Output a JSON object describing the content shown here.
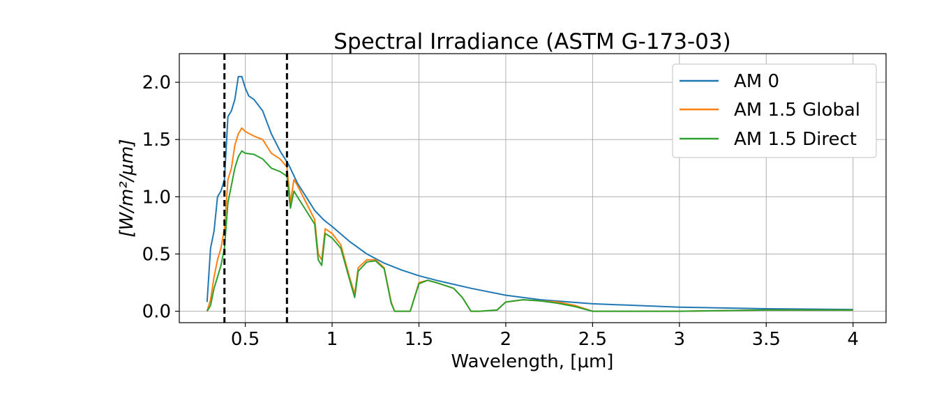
{
  "chart_data": {
    "type": "line",
    "title": "Spectral Irradiance (ASTM G-173-03)",
    "xlabel": "Wavelength, [μm]",
    "ylabel": "[W/m²/μm]",
    "xlim": [
      0.12,
      4.19
    ],
    "ylim": [
      -0.1,
      2.25
    ],
    "x_ticks": [
      0.5,
      1,
      1.5,
      2,
      2.5,
      3,
      3.5,
      4
    ],
    "x_tick_labels": [
      "0.5",
      "1",
      "1.5",
      "2",
      "2.5",
      "3",
      "3.5",
      "4"
    ],
    "y_ticks": [
      0.0,
      0.5,
      1.0,
      1.5,
      2.0
    ],
    "y_tick_labels": [
      "0.0",
      "0.5",
      "1.0",
      "1.5",
      "2.0"
    ],
    "grid": true,
    "legend_position": "top-right",
    "vlines": {
      "x": [
        0.38,
        0.74
      ],
      "style": "dashed",
      "color": "#000000"
    },
    "series": [
      {
        "name": "AM 0",
        "color": "#1f77b4",
        "x": [
          0.28,
          0.3,
          0.32,
          0.34,
          0.36,
          0.38,
          0.4,
          0.42,
          0.44,
          0.46,
          0.48,
          0.5,
          0.52,
          0.55,
          0.6,
          0.65,
          0.7,
          0.75,
          0.8,
          0.85,
          0.9,
          0.95,
          1.0,
          1.1,
          1.2,
          1.3,
          1.4,
          1.5,
          1.6,
          1.8,
          2.0,
          2.2,
          2.5,
          3.0,
          3.5,
          4.0
        ],
        "y": [
          0.08,
          0.55,
          0.7,
          1.0,
          1.05,
          1.15,
          1.7,
          1.75,
          1.85,
          2.05,
          2.05,
          1.95,
          1.88,
          1.85,
          1.75,
          1.55,
          1.4,
          1.28,
          1.12,
          1.0,
          0.88,
          0.8,
          0.74,
          0.61,
          0.5,
          0.42,
          0.36,
          0.31,
          0.27,
          0.2,
          0.14,
          0.1,
          0.065,
          0.036,
          0.022,
          0.015
        ]
      },
      {
        "name": "AM 1.5 Global",
        "color": "#ff7f0e",
        "x": [
          0.28,
          0.3,
          0.32,
          0.34,
          0.36,
          0.38,
          0.4,
          0.42,
          0.44,
          0.46,
          0.48,
          0.5,
          0.55,
          0.6,
          0.65,
          0.7,
          0.74,
          0.76,
          0.78,
          0.8,
          0.85,
          0.9,
          0.92,
          0.94,
          0.96,
          1.0,
          1.05,
          1.1,
          1.13,
          1.15,
          1.2,
          1.25,
          1.3,
          1.34,
          1.36,
          1.4,
          1.45,
          1.5,
          1.55,
          1.6,
          1.7,
          1.75,
          1.8,
          1.85,
          1.95,
          2.0,
          2.1,
          2.2,
          2.3,
          2.4,
          2.5,
          2.6,
          3.0,
          3.5,
          4.0
        ],
        "y": [
          0.0,
          0.1,
          0.3,
          0.45,
          0.55,
          0.72,
          1.15,
          1.25,
          1.45,
          1.55,
          1.6,
          1.57,
          1.53,
          1.5,
          1.38,
          1.33,
          1.26,
          0.95,
          1.15,
          1.1,
          0.95,
          0.8,
          0.5,
          0.45,
          0.72,
          0.68,
          0.58,
          0.3,
          0.15,
          0.38,
          0.45,
          0.45,
          0.38,
          0.08,
          0.0,
          0.0,
          0.0,
          0.25,
          0.27,
          0.25,
          0.2,
          0.12,
          0.0,
          0.0,
          0.01,
          0.08,
          0.1,
          0.09,
          0.08,
          0.05,
          0.0,
          0.0,
          0.0,
          0.01,
          0.01
        ]
      },
      {
        "name": "AM 1.5 Direct",
        "color": "#2ca02c",
        "x": [
          0.28,
          0.3,
          0.32,
          0.34,
          0.36,
          0.38,
          0.4,
          0.42,
          0.44,
          0.46,
          0.48,
          0.5,
          0.55,
          0.6,
          0.65,
          0.7,
          0.74,
          0.76,
          0.78,
          0.8,
          0.85,
          0.9,
          0.92,
          0.94,
          0.96,
          1.0,
          1.05,
          1.1,
          1.13,
          1.15,
          1.2,
          1.25,
          1.3,
          1.34,
          1.36,
          1.4,
          1.45,
          1.5,
          1.55,
          1.6,
          1.7,
          1.75,
          1.8,
          1.85,
          1.95,
          2.0,
          2.1,
          2.2,
          2.3,
          2.4,
          2.5,
          2.6,
          3.0,
          3.5,
          4.0
        ],
        "y": [
          0.0,
          0.05,
          0.2,
          0.3,
          0.4,
          0.55,
          0.95,
          1.1,
          1.25,
          1.35,
          1.4,
          1.38,
          1.37,
          1.33,
          1.25,
          1.22,
          1.18,
          0.9,
          1.05,
          1.0,
          0.88,
          0.76,
          0.45,
          0.4,
          0.68,
          0.64,
          0.55,
          0.28,
          0.12,
          0.35,
          0.43,
          0.44,
          0.37,
          0.07,
          0.0,
          0.0,
          0.0,
          0.24,
          0.27,
          0.25,
          0.2,
          0.12,
          0.0,
          0.0,
          0.01,
          0.08,
          0.1,
          0.09,
          0.07,
          0.04,
          0.0,
          0.0,
          0.0,
          0.01,
          0.01
        ]
      }
    ]
  }
}
